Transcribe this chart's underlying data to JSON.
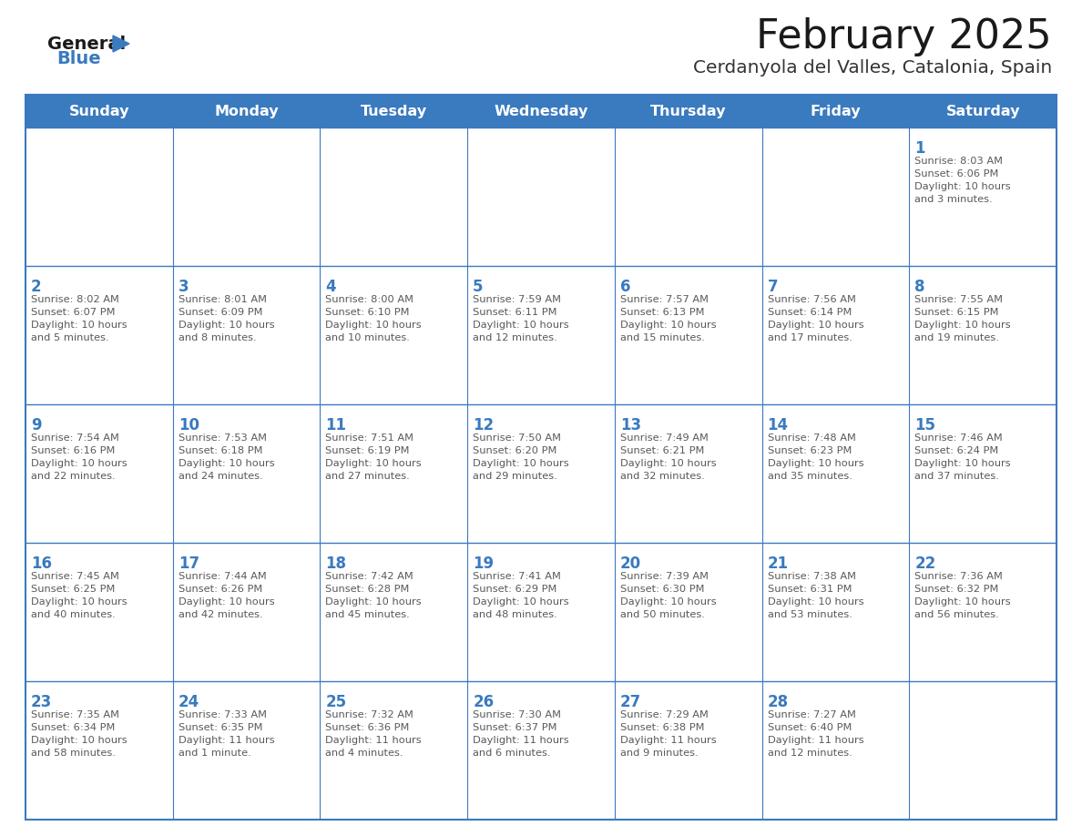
{
  "title": "February 2025",
  "subtitle": "Cerdanyola del Valles, Catalonia, Spain",
  "days_of_week": [
    "Sunday",
    "Monday",
    "Tuesday",
    "Wednesday",
    "Thursday",
    "Friday",
    "Saturday"
  ],
  "header_bg": "#3a7abf",
  "header_text": "#ffffff",
  "cell_bg": "#ffffff",
  "border_color": "#3a7abf",
  "day_num_color": "#3a7abf",
  "text_color": "#595959",
  "title_color": "#1a1a1a",
  "subtitle_color": "#333333",
  "logo_general_color": "#1a1a1a",
  "logo_blue_color": "#3a7abf",
  "calendar_data": [
    [
      null,
      null,
      null,
      null,
      null,
      null,
      {
        "day": 1,
        "sunrise": "8:03 AM",
        "sunset": "6:06 PM",
        "daylight": "10 hours and 3 minutes."
      }
    ],
    [
      {
        "day": 2,
        "sunrise": "8:02 AM",
        "sunset": "6:07 PM",
        "daylight": "10 hours and 5 minutes."
      },
      {
        "day": 3,
        "sunrise": "8:01 AM",
        "sunset": "6:09 PM",
        "daylight": "10 hours and 8 minutes."
      },
      {
        "day": 4,
        "sunrise": "8:00 AM",
        "sunset": "6:10 PM",
        "daylight": "10 hours and 10 minutes."
      },
      {
        "day": 5,
        "sunrise": "7:59 AM",
        "sunset": "6:11 PM",
        "daylight": "10 hours and 12 minutes."
      },
      {
        "day": 6,
        "sunrise": "7:57 AM",
        "sunset": "6:13 PM",
        "daylight": "10 hours and 15 minutes."
      },
      {
        "day": 7,
        "sunrise": "7:56 AM",
        "sunset": "6:14 PM",
        "daylight": "10 hours and 17 minutes."
      },
      {
        "day": 8,
        "sunrise": "7:55 AM",
        "sunset": "6:15 PM",
        "daylight": "10 hours and 19 minutes."
      }
    ],
    [
      {
        "day": 9,
        "sunrise": "7:54 AM",
        "sunset": "6:16 PM",
        "daylight": "10 hours and 22 minutes."
      },
      {
        "day": 10,
        "sunrise": "7:53 AM",
        "sunset": "6:18 PM",
        "daylight": "10 hours and 24 minutes."
      },
      {
        "day": 11,
        "sunrise": "7:51 AM",
        "sunset": "6:19 PM",
        "daylight": "10 hours and 27 minutes."
      },
      {
        "day": 12,
        "sunrise": "7:50 AM",
        "sunset": "6:20 PM",
        "daylight": "10 hours and 29 minutes."
      },
      {
        "day": 13,
        "sunrise": "7:49 AM",
        "sunset": "6:21 PM",
        "daylight": "10 hours and 32 minutes."
      },
      {
        "day": 14,
        "sunrise": "7:48 AM",
        "sunset": "6:23 PM",
        "daylight": "10 hours and 35 minutes."
      },
      {
        "day": 15,
        "sunrise": "7:46 AM",
        "sunset": "6:24 PM",
        "daylight": "10 hours and 37 minutes."
      }
    ],
    [
      {
        "day": 16,
        "sunrise": "7:45 AM",
        "sunset": "6:25 PM",
        "daylight": "10 hours and 40 minutes."
      },
      {
        "day": 17,
        "sunrise": "7:44 AM",
        "sunset": "6:26 PM",
        "daylight": "10 hours and 42 minutes."
      },
      {
        "day": 18,
        "sunrise": "7:42 AM",
        "sunset": "6:28 PM",
        "daylight": "10 hours and 45 minutes."
      },
      {
        "day": 19,
        "sunrise": "7:41 AM",
        "sunset": "6:29 PM",
        "daylight": "10 hours and 48 minutes."
      },
      {
        "day": 20,
        "sunrise": "7:39 AM",
        "sunset": "6:30 PM",
        "daylight": "10 hours and 50 minutes."
      },
      {
        "day": 21,
        "sunrise": "7:38 AM",
        "sunset": "6:31 PM",
        "daylight": "10 hours and 53 minutes."
      },
      {
        "day": 22,
        "sunrise": "7:36 AM",
        "sunset": "6:32 PM",
        "daylight": "10 hours and 56 minutes."
      }
    ],
    [
      {
        "day": 23,
        "sunrise": "7:35 AM",
        "sunset": "6:34 PM",
        "daylight": "10 hours and 58 minutes."
      },
      {
        "day": 24,
        "sunrise": "7:33 AM",
        "sunset": "6:35 PM",
        "daylight": "11 hours and 1 minute."
      },
      {
        "day": 25,
        "sunrise": "7:32 AM",
        "sunset": "6:36 PM",
        "daylight": "11 hours and 4 minutes."
      },
      {
        "day": 26,
        "sunrise": "7:30 AM",
        "sunset": "6:37 PM",
        "daylight": "11 hours and 6 minutes."
      },
      {
        "day": 27,
        "sunrise": "7:29 AM",
        "sunset": "6:38 PM",
        "daylight": "11 hours and 9 minutes."
      },
      {
        "day": 28,
        "sunrise": "7:27 AM",
        "sunset": "6:40 PM",
        "daylight": "11 hours and 12 minutes."
      },
      null
    ]
  ]
}
